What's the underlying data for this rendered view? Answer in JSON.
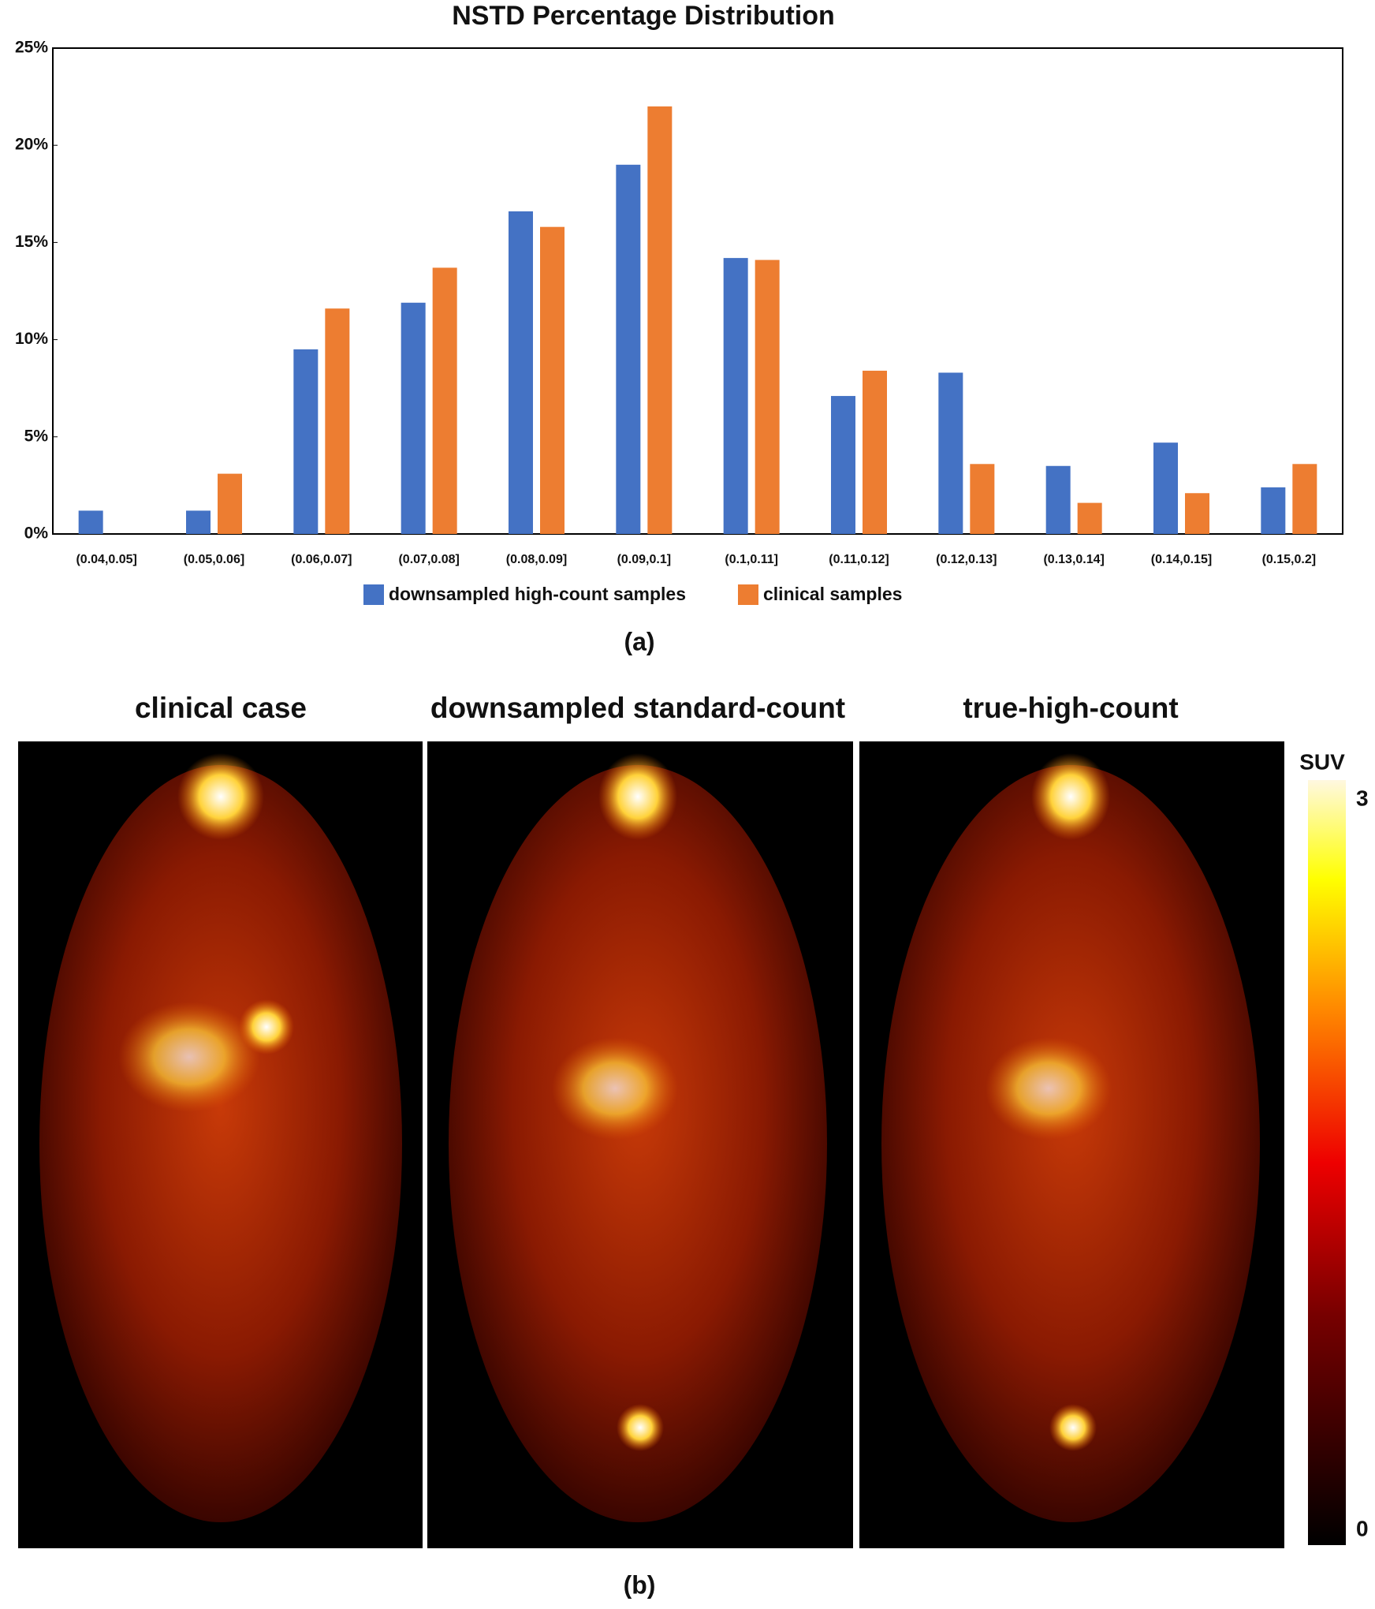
{
  "chart_data": {
    "type": "bar",
    "title": "NSTD Percentage Distribution",
    "categories": [
      "(0.04,0.05]",
      "(0.05,0.06]",
      "(0.06,0.07]",
      "(0.07,0.08]",
      "(0.08,0.09]",
      "(0.09,0.1]",
      "(0.1,0.11]",
      "(0.11,0.12]",
      "(0.12,0.13]",
      "(0.13,0.14]",
      "(0.14,0.15]",
      "(0.15,0.2]"
    ],
    "series": [
      {
        "name": "downsampled high-count samples",
        "color": "#4472c4",
        "values": [
          1.2,
          1.2,
          9.5,
          11.9,
          16.6,
          19.0,
          14.2,
          7.1,
          8.3,
          3.5,
          4.7,
          2.4
        ]
      },
      {
        "name": "clinical samples",
        "color": "#ed7d31",
        "values": [
          0,
          3.1,
          11.6,
          13.7,
          15.8,
          22.0,
          14.1,
          8.4,
          3.6,
          1.6,
          2.1,
          3.6
        ]
      }
    ],
    "ylim": [
      0,
      25
    ],
    "yticks": [
      {
        "value": 0,
        "label": "0%"
      },
      {
        "value": 5,
        "label": "5%"
      },
      {
        "value": 10,
        "label": "10%"
      },
      {
        "value": 15,
        "label": "15%"
      },
      {
        "value": 20,
        "label": "20%"
      },
      {
        "value": 25,
        "label": "25%"
      }
    ],
    "grid": false,
    "legend": "bottom",
    "caption": "(a)"
  },
  "figure": {
    "panel_titles": [
      "clinical case",
      "downsampled standard-count",
      "true-high-count"
    ],
    "colorbar": {
      "label": "SUV",
      "lim": [
        0,
        3
      ],
      "ticks": [
        0,
        3
      ]
    },
    "caption": "(b)"
  }
}
